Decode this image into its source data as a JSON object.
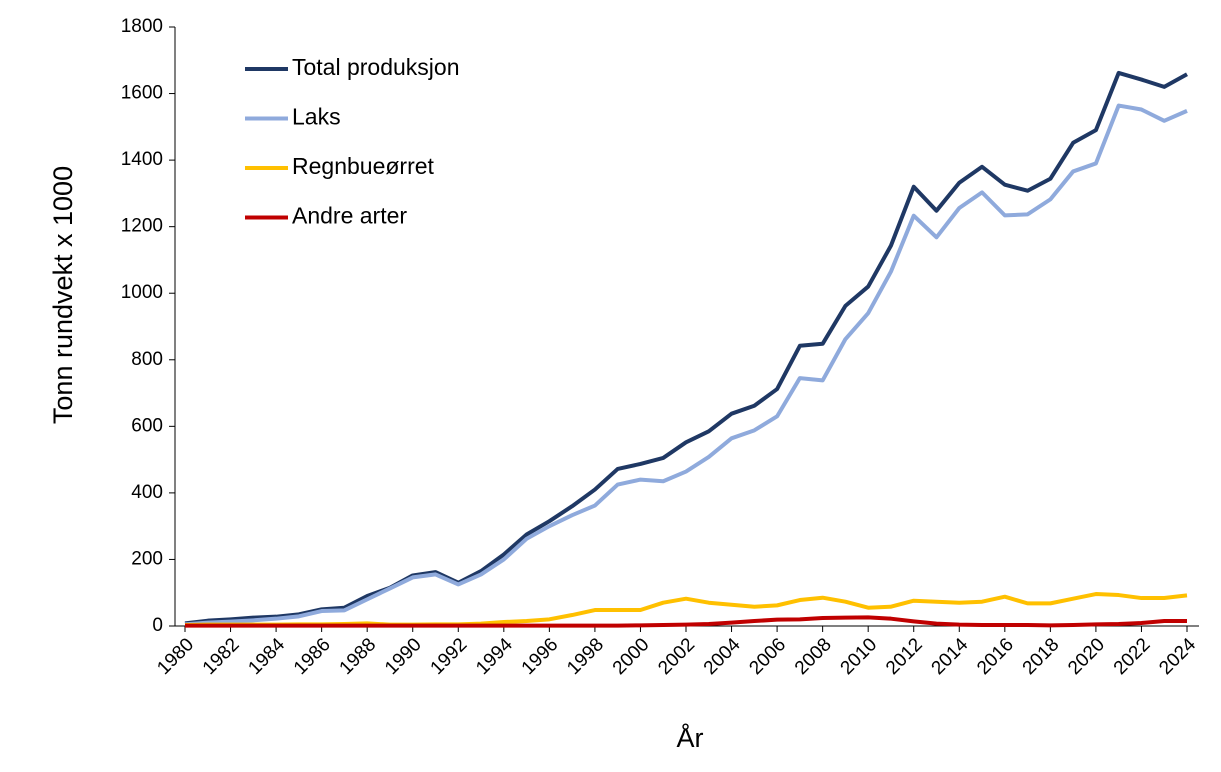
{
  "chart_data": {
    "type": "line",
    "x_label": "År",
    "y_label": "Tonn rundvekt x 1000",
    "x": [
      1980,
      1981,
      1982,
      1983,
      1984,
      1985,
      1986,
      1987,
      1988,
      1989,
      1990,
      1991,
      1992,
      1993,
      1994,
      1995,
      1996,
      1997,
      1998,
      1999,
      2000,
      2001,
      2002,
      2003,
      2004,
      2005,
      2006,
      2007,
      2008,
      2009,
      2010,
      2011,
      2012,
      2013,
      2014,
      2015,
      2016,
      2017,
      2018,
      2019,
      2020,
      2021,
      2022,
      2023,
      2024
    ],
    "series": [
      {
        "name": "Total produksjon",
        "color": "#1f3864",
        "values": [
          8,
          16,
          20,
          25,
          28,
          35,
          50,
          55,
          90,
          115,
          152,
          162,
          130,
          165,
          215,
          275,
          315,
          360,
          410,
          472,
          487,
          505,
          552,
          585,
          638,
          662,
          712,
          842,
          848,
          962,
          1020,
          1143,
          1320,
          1248,
          1332,
          1380,
          1326,
          1308,
          1344,
          1452,
          1490,
          1662,
          1642,
          1620,
          1658
        ]
      },
      {
        "name": "Laks",
        "color": "#8faadc",
        "values": [
          5,
          10,
          13,
          17,
          22,
          29,
          45,
          47,
          80,
          113,
          146,
          155,
          125,
          155,
          200,
          262,
          300,
          333,
          362,
          425,
          440,
          435,
          464,
          508,
          564,
          588,
          630,
          745,
          738,
          862,
          940,
          1065,
          1233,
          1168,
          1256,
          1303,
          1234,
          1237,
          1282,
          1366,
          1390,
          1564,
          1552,
          1518,
          1548
        ]
      },
      {
        "name": "Regnbueørret",
        "color": "#ffc000",
        "values": [
          3,
          4,
          4,
          4,
          4,
          5,
          5,
          6,
          8,
          4,
          4,
          5,
          5,
          7,
          12,
          15,
          20,
          33,
          48,
          48,
          48,
          70,
          82,
          70,
          64,
          58,
          62,
          78,
          85,
          73,
          55,
          58,
          76,
          73,
          70,
          73,
          88,
          68,
          68,
          82,
          96,
          93,
          84,
          84,
          92
        ]
      },
      {
        "name": "Andre arter",
        "color": "#c00000",
        "values": [
          1,
          1,
          1,
          1,
          1,
          1,
          1,
          1,
          1,
          1,
          1,
          1,
          1,
          1,
          1,
          1,
          1,
          1,
          1,
          1,
          2,
          3,
          4,
          6,
          10,
          15,
          19,
          20,
          24,
          25,
          26,
          22,
          14,
          7,
          4,
          3,
          3,
          3,
          2,
          3,
          5,
          6,
          9,
          15,
          15
        ]
      }
    ],
    "xlim": [
      1980,
      2024
    ],
    "xticks": [
      1980,
      1982,
      1984,
      1986,
      1988,
      1990,
      1992,
      1994,
      1996,
      1998,
      2000,
      2002,
      2004,
      2006,
      2008,
      2010,
      2012,
      2014,
      2016,
      2018,
      2020,
      2022,
      2024
    ],
    "ylim": [
      0,
      1800
    ],
    "yticks": [
      0,
      200,
      400,
      600,
      800,
      1000,
      1200,
      1400,
      1600,
      1800
    ],
    "grid": false,
    "legend": "upper-left"
  }
}
